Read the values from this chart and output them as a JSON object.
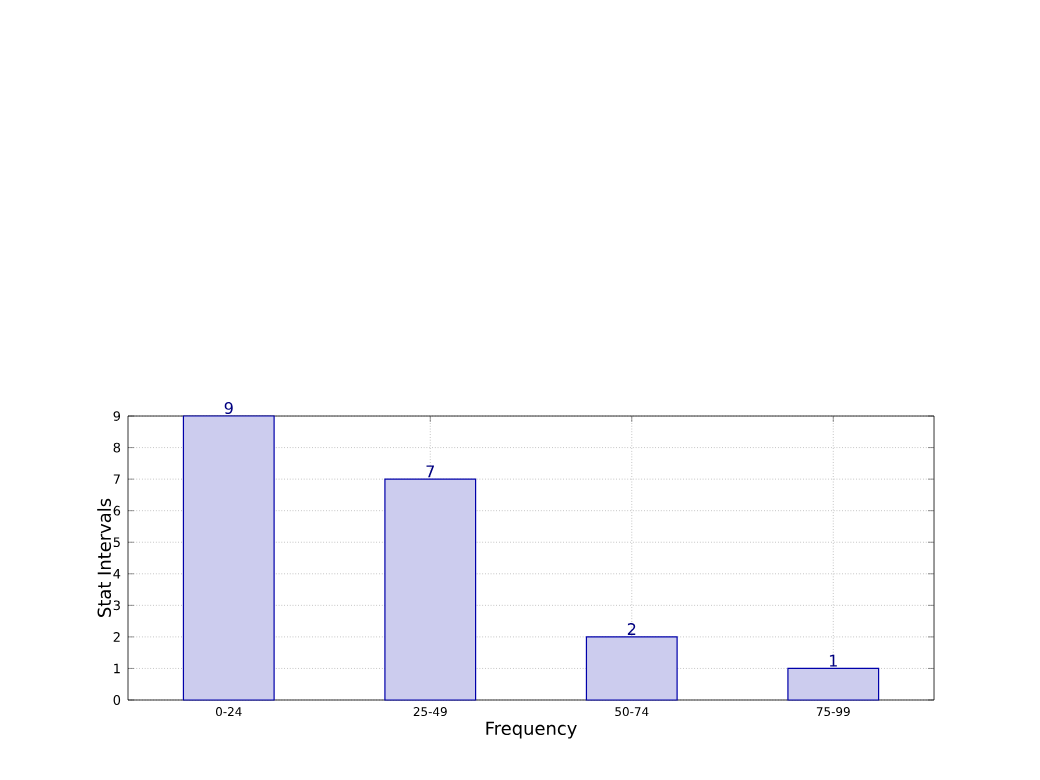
{
  "chart_data": {
    "type": "bar",
    "xlabel": "Frequency",
    "ylabel": "Stat Intervals",
    "categories": [
      "0-24",
      "25-49",
      "50-74",
      "75-99"
    ],
    "values": [
      9,
      7,
      2,
      1
    ],
    "color": "#ccccee",
    "ylim": [
      0,
      9
    ],
    "yticks": [
      0,
      1,
      2,
      3,
      4,
      5,
      6,
      7,
      8,
      9
    ],
    "grid": true,
    "data_labels": true
  }
}
